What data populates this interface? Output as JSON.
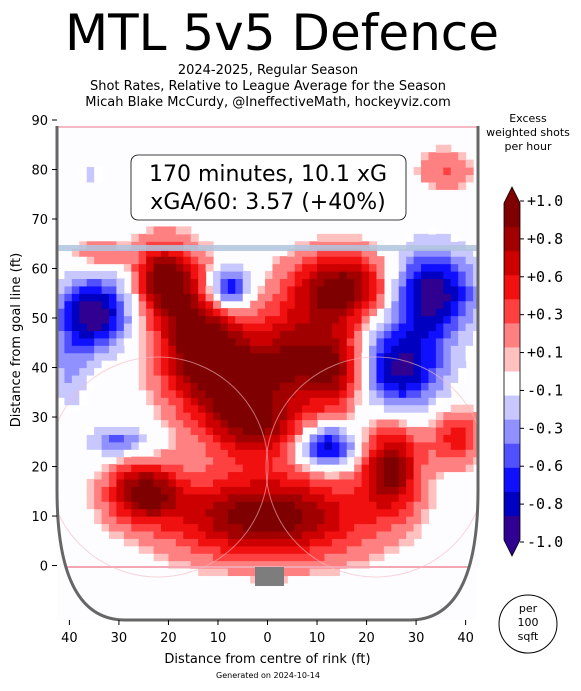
{
  "header": {
    "title": "MTL 5v5 Defence",
    "subtitle_1": "2024-2025, Regular Season",
    "subtitle_2": "Shot Rates, Relative to League Average for the Season",
    "subtitle_3": "Micah Blake McCurdy, @IneffectiveMath, hockeyviz.com"
  },
  "stats_box": {
    "line_1": "170 minutes, 10.1 xG",
    "line_2": "xGA/60: 3.57 (+40%)"
  },
  "colorbar": {
    "title_1": "Excess",
    "title_2": "weighted shots",
    "title_3": "per hour",
    "tick_labels": [
      "+1.0",
      "+0.8",
      "+0.6",
      "+0.3",
      "+0.1",
      "-0.1",
      "-0.3",
      "-0.6",
      "-0.8",
      "-1.0"
    ],
    "levels": [
      1.0,
      0.8,
      0.6,
      0.3,
      0.1,
      -0.1,
      -0.3,
      -0.6,
      -0.8,
      -1.0
    ],
    "colors": [
      "#7f0000",
      "#a00000",
      "#cc0000",
      "#f01010",
      "#ff4040",
      "#ff8080",
      "#ffc0c0",
      "#ffffff",
      "#c8c8ff",
      "#9090ff",
      "#5050ff",
      "#1010ff",
      "#0000c0",
      "#300090"
    ]
  },
  "unit_badge": {
    "line_1": "per",
    "line_2": "100",
    "line_3": "sqft"
  },
  "footer": "Generated on 2024-10-14",
  "chart_data": {
    "type": "heatmap",
    "title": "MTL 5v5 Defence",
    "xlabel": "Distance from centre of rink (ft)",
    "ylabel": "Distance from goal line (ft)",
    "xlim": [
      -42.5,
      42.5
    ],
    "ylim": [
      -11,
      90
    ],
    "x_ticks": [
      -40,
      -30,
      -20,
      -10,
      0,
      10,
      20,
      30,
      40
    ],
    "x_tick_labels": [
      "40",
      "30",
      "20",
      "10",
      "0",
      "10",
      "20",
      "30",
      "40"
    ],
    "y_ticks": [
      0,
      10,
      20,
      30,
      40,
      50,
      60,
      70,
      80,
      90
    ],
    "y_tick_labels": [
      "0",
      "10",
      "20",
      "30",
      "40",
      "50",
      "60",
      "70",
      "80",
      "90"
    ],
    "value_range": [
      -1.0,
      1.0
    ],
    "hotspots": [
      {
        "x": 0,
        "y": 10,
        "value": 1.0,
        "sx": 14,
        "sy": 6
      },
      {
        "x": -14,
        "y": 45,
        "value": 1.0,
        "sx": 6,
        "sy": 9
      },
      {
        "x": 15,
        "y": 56,
        "value": 1.0,
        "sx": 7,
        "sy": 5
      },
      {
        "x": -21,
        "y": 58,
        "value": 0.9,
        "sx": 4,
        "sy": 5
      },
      {
        "x": -6,
        "y": 38,
        "value": 0.8,
        "sx": 5,
        "sy": 6
      },
      {
        "x": 5,
        "y": 42,
        "value": 0.8,
        "sx": 5,
        "sy": 7
      },
      {
        "x": 14,
        "y": 40,
        "value": 0.8,
        "sx": 4,
        "sy": 6
      },
      {
        "x": -25,
        "y": 15,
        "value": 0.9,
        "sx": 5,
        "sy": 4
      },
      {
        "x": 25,
        "y": 20,
        "value": 0.9,
        "sx": 4,
        "sy": 6
      },
      {
        "x": -2,
        "y": 28,
        "value": 0.7,
        "sx": 7,
        "sy": 5
      },
      {
        "x": 38,
        "y": 26,
        "value": 0.5,
        "sx": 4,
        "sy": 4
      },
      {
        "x": -34,
        "y": 63,
        "value": 0.3,
        "sx": 4,
        "sy": 2
      },
      {
        "x": 36,
        "y": 80,
        "value": 0.3,
        "sx": 4,
        "sy": 3
      },
      {
        "x": -35,
        "y": 51,
        "value": -1.0,
        "sx": 5,
        "sy": 5
      },
      {
        "x": -8,
        "y": 56,
        "value": -0.9,
        "sx": 3,
        "sy": 3
      },
      {
        "x": 33,
        "y": 55,
        "value": -1.0,
        "sx": 6,
        "sy": 6
      },
      {
        "x": 27,
        "y": 40,
        "value": -0.9,
        "sx": 6,
        "sy": 6
      },
      {
        "x": -30,
        "y": 25,
        "value": -0.5,
        "sx": 4,
        "sy": 2
      },
      {
        "x": 12,
        "y": 24,
        "value": -0.9,
        "sx": 4,
        "sy": 3
      },
      {
        "x": -40,
        "y": 40,
        "value": -0.3,
        "sx": 3,
        "sy": 6
      },
      {
        "x": -36,
        "y": 79,
        "value": -0.2,
        "sx": 3,
        "sy": 1
      }
    ]
  }
}
